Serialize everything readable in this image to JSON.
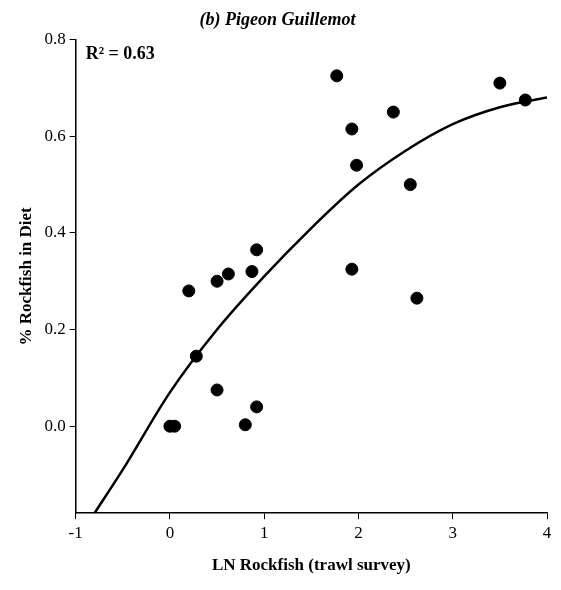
{
  "chart_data": {
    "type": "scatter",
    "title": "(b) Pigeon Guillemot",
    "x_label": "LN Rockfish (trawl survey)",
    "y_label": "% Rockfish in Diet",
    "annotation": "R² = 0.63",
    "xlim": [
      -1,
      4
    ],
    "xticks": [
      -1,
      0,
      1,
      2,
      3,
      4
    ],
    "ylim": [
      -0.18,
      0.8
    ],
    "yticks": [
      {
        "value": 0,
        "label": "0.0"
      },
      {
        "value": 0.2,
        "label": "0.2"
      },
      {
        "value": 0.4,
        "label": "0.4"
      },
      {
        "value": 0.6,
        "label": "0.6"
      },
      {
        "value": 0.8,
        "label": "0.8"
      }
    ],
    "grid": false,
    "series": [
      {
        "type": "scatter",
        "color": "#000000",
        "marker": "circle",
        "x": [
          0,
          0.05,
          0.2,
          0.28,
          0.5,
          0.5,
          0.62,
          0.8,
          0.87,
          0.92,
          0.92,
          1.77,
          1.93,
          1.93,
          1.98,
          2.37,
          2.55,
          2.62,
          3.5,
          3.77
        ],
        "values": [
          0,
          0,
          0.28,
          0.145,
          0.3,
          0.075,
          0.315,
          0.003,
          0.32,
          0.365,
          0.04,
          0.725,
          0.615,
          0.325,
          0.54,
          0.65,
          0.5,
          0.265,
          0.71,
          0.675
        ]
      },
      {
        "type": "line",
        "color": "#000000",
        "line_style": "solid",
        "x": [
          -0.8,
          -0.5,
          0,
          0.5,
          1,
          1.5,
          2,
          2.5,
          3,
          3.5,
          4
        ],
        "values": [
          -0.18,
          -0.09,
          0.07,
          0.2,
          0.31,
          0.41,
          0.5,
          0.57,
          0.625,
          0.66,
          0.68
        ]
      }
    ]
  }
}
